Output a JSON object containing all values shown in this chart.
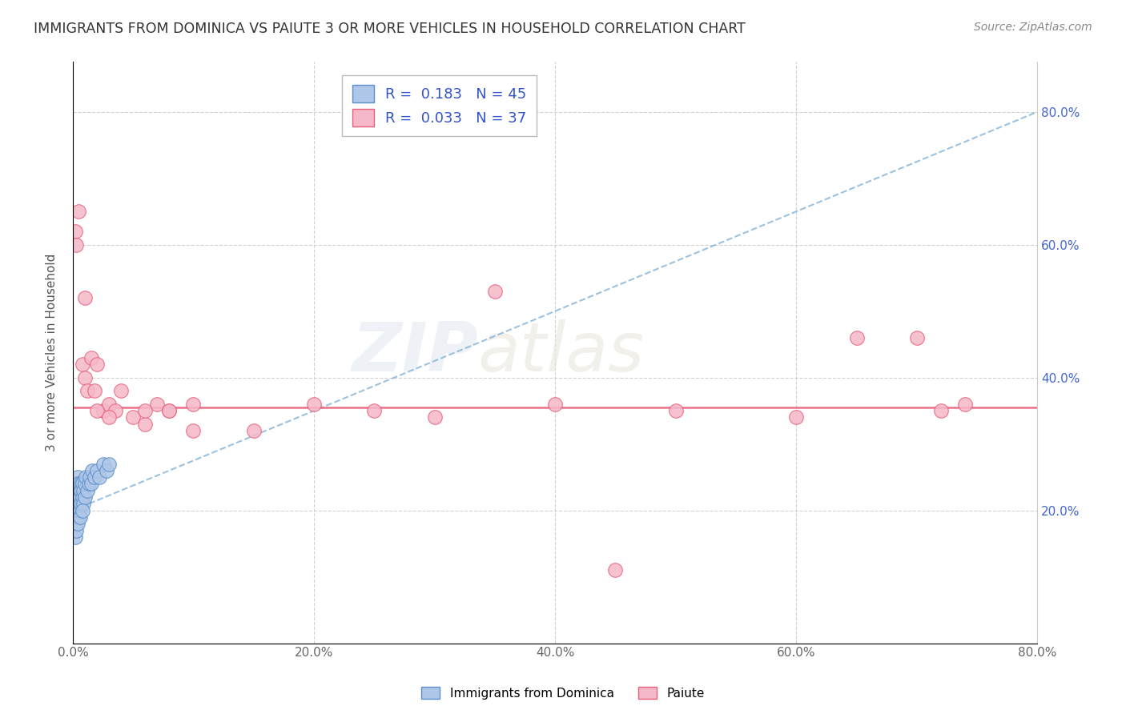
{
  "title": "IMMIGRANTS FROM DOMINICA VS PAIUTE 3 OR MORE VEHICLES IN HOUSEHOLD CORRELATION CHART",
  "source": "Source: ZipAtlas.com",
  "ylabel": "3 or more Vehicles in Household",
  "xmin": 0.0,
  "xmax": 0.8,
  "ymin": 0.0,
  "ymax": 0.875,
  "xticks": [
    0.0,
    0.2,
    0.4,
    0.6,
    0.8
  ],
  "yticks": [
    0.0,
    0.2,
    0.4,
    0.6,
    0.8
  ],
  "xtick_labels": [
    "0.0%",
    "20.0%",
    "40.0%",
    "60.0%",
    "80.0%"
  ],
  "ytick_labels_right": [
    "",
    "20.0%",
    "40.0%",
    "60.0%",
    "80.0%"
  ],
  "legend1_label": "Immigrants from Dominica",
  "legend2_label": "Paiute",
  "R1": 0.183,
  "N1": 45,
  "R2": 0.033,
  "N2": 37,
  "color_blue": "#aec6e8",
  "color_blue_edge": "#5b8fc9",
  "color_pink": "#f5b8c8",
  "color_pink_edge": "#e8607a",
  "color_blue_line": "#7aaed6",
  "color_pink_line": "#e8607a",
  "color_blue_text": "#3355cc",
  "color_right_tick": "#4466cc",
  "background": "#ffffff",
  "watermark_zip": "ZIP",
  "watermark_atlas": "atlas",
  "blue_line_x0": 0.0,
  "blue_line_y0": 0.2,
  "blue_line_x1": 0.8,
  "blue_line_y1": 0.8,
  "pink_line_y": 0.355,
  "blue_x": [
    0.001,
    0.001,
    0.002,
    0.002,
    0.002,
    0.003,
    0.003,
    0.003,
    0.003,
    0.004,
    0.004,
    0.004,
    0.005,
    0.005,
    0.005,
    0.005,
    0.006,
    0.006,
    0.006,
    0.007,
    0.007,
    0.007,
    0.008,
    0.008,
    0.009,
    0.009,
    0.01,
    0.01,
    0.011,
    0.012,
    0.013,
    0.014,
    0.015,
    0.016,
    0.018,
    0.02,
    0.022,
    0.025,
    0.028,
    0.03,
    0.002,
    0.003,
    0.004,
    0.006,
    0.008
  ],
  "blue_y": [
    0.22,
    0.2,
    0.24,
    0.22,
    0.19,
    0.23,
    0.21,
    0.2,
    0.18,
    0.25,
    0.22,
    0.2,
    0.24,
    0.22,
    0.21,
    0.19,
    0.23,
    0.22,
    0.2,
    0.24,
    0.21,
    0.23,
    0.22,
    0.24,
    0.23,
    0.21,
    0.24,
    0.22,
    0.25,
    0.23,
    0.24,
    0.25,
    0.24,
    0.26,
    0.25,
    0.26,
    0.25,
    0.27,
    0.26,
    0.27,
    0.16,
    0.17,
    0.18,
    0.19,
    0.2
  ],
  "pink_x": [
    0.002,
    0.003,
    0.005,
    0.008,
    0.01,
    0.012,
    0.015,
    0.018,
    0.02,
    0.025,
    0.03,
    0.035,
    0.04,
    0.05,
    0.06,
    0.07,
    0.08,
    0.1,
    0.15,
    0.2,
    0.25,
    0.3,
    0.35,
    0.4,
    0.5,
    0.6,
    0.65,
    0.7,
    0.72,
    0.74,
    0.01,
    0.02,
    0.03,
    0.06,
    0.08,
    0.1,
    0.45
  ],
  "pink_y": [
    0.62,
    0.6,
    0.65,
    0.42,
    0.4,
    0.38,
    0.43,
    0.38,
    0.42,
    0.35,
    0.36,
    0.35,
    0.38,
    0.34,
    0.33,
    0.36,
    0.35,
    0.36,
    0.32,
    0.36,
    0.35,
    0.34,
    0.53,
    0.36,
    0.35,
    0.34,
    0.46,
    0.46,
    0.35,
    0.36,
    0.52,
    0.35,
    0.34,
    0.35,
    0.35,
    0.32,
    0.11
  ]
}
